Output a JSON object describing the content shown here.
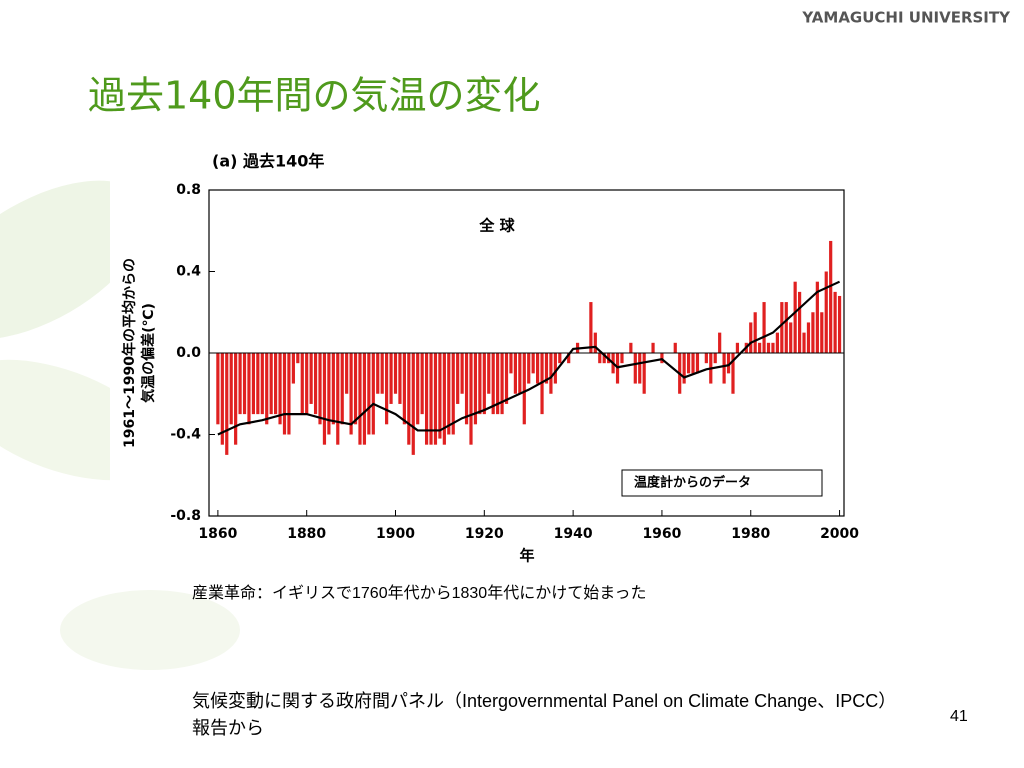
{
  "slide": {
    "logo": "YAMAGUCHI UNIVERSITY",
    "title": "過去140年間の気温の変化",
    "caption": "産業革命：イギリスで1760年代から1830年代にかけて始まった",
    "source": "気候変動に関する政府間パネル（Intergovernmental Panel on Climate Change、IPCC）報告から",
    "page_number": "41"
  },
  "chart_data": {
    "type": "bar",
    "title": "(a) 過去140年",
    "annotation": "全 球",
    "x_label": "年",
    "y_label": [
      "1961～1990年の平均からの",
      "気温の偏差(℃)"
    ],
    "xlim": [
      1858,
      2001
    ],
    "xticks": [
      1860,
      1880,
      1900,
      1920,
      1940,
      1960,
      1980,
      2000
    ],
    "ylim": [
      -0.8,
      0.8
    ],
    "yticks": [
      -0.8,
      -0.4,
      {
        "value": 0,
        "label": "0.0"
      },
      0.4,
      0.8
    ],
    "legend": "lower right",
    "series": [
      {
        "name": "温度計からのデータ",
        "type": "bar",
        "color": "#e02020",
        "x": [
          1860,
          1861,
          1862,
          1863,
          1864,
          1865,
          1866,
          1867,
          1868,
          1869,
          1870,
          1871,
          1872,
          1873,
          1874,
          1875,
          1876,
          1877,
          1878,
          1879,
          1880,
          1881,
          1882,
          1883,
          1884,
          1885,
          1886,
          1887,
          1888,
          1889,
          1890,
          1891,
          1892,
          1893,
          1894,
          1895,
          1896,
          1897,
          1898,
          1899,
          1900,
          1901,
          1902,
          1903,
          1904,
          1905,
          1906,
          1907,
          1908,
          1909,
          1910,
          1911,
          1912,
          1913,
          1914,
          1915,
          1916,
          1917,
          1918,
          1919,
          1920,
          1921,
          1922,
          1923,
          1924,
          1925,
          1926,
          1927,
          1928,
          1929,
          1930,
          1931,
          1932,
          1933,
          1934,
          1935,
          1936,
          1937,
          1938,
          1939,
          1940,
          1941,
          1942,
          1943,
          1944,
          1945,
          1946,
          1947,
          1948,
          1949,
          1950,
          1951,
          1952,
          1953,
          1954,
          1955,
          1956,
          1957,
          1958,
          1959,
          1960,
          1961,
          1962,
          1963,
          1964,
          1965,
          1966,
          1967,
          1968,
          1969,
          1970,
          1971,
          1972,
          1973,
          1974,
          1975,
          1976,
          1977,
          1978,
          1979,
          1980,
          1981,
          1982,
          1983,
          1984,
          1985,
          1986,
          1987,
          1988,
          1989,
          1990,
          1991,
          1992,
          1993,
          1994,
          1995,
          1996,
          1997,
          1998,
          1999,
          2000
        ],
        "values": [
          -0.35,
          -0.45,
          -0.5,
          -0.35,
          -0.45,
          -0.3,
          -0.3,
          -0.35,
          -0.3,
          -0.3,
          -0.3,
          -0.35,
          -0.3,
          -0.3,
          -0.35,
          -0.4,
          -0.4,
          -0.15,
          -0.05,
          -0.3,
          -0.3,
          -0.25,
          -0.3,
          -0.35,
          -0.45,
          -0.4,
          -0.35,
          -0.45,
          -0.35,
          -0.2,
          -0.4,
          -0.35,
          -0.45,
          -0.45,
          -0.4,
          -0.4,
          -0.2,
          -0.2,
          -0.35,
          -0.25,
          -0.2,
          -0.25,
          -0.35,
          -0.45,
          -0.5,
          -0.35,
          -0.3,
          -0.45,
          -0.45,
          -0.45,
          -0.42,
          -0.45,
          -0.4,
          -0.4,
          -0.25,
          -0.2,
          -0.35,
          -0.45,
          -0.35,
          -0.3,
          -0.3,
          -0.2,
          -0.3,
          -0.3,
          -0.3,
          -0.25,
          -0.1,
          -0.2,
          -0.2,
          -0.35,
          -0.15,
          -0.1,
          -0.15,
          -0.3,
          -0.15,
          -0.2,
          -0.15,
          -0.05,
          0.0,
          -0.05,
          0.0,
          0.05,
          0.0,
          0.0,
          0.25,
          0.1,
          -0.05,
          -0.05,
          -0.05,
          -0.1,
          -0.15,
          -0.05,
          0.0,
          0.05,
          -0.15,
          -0.15,
          -0.2,
          0.0,
          0.05,
          0.0,
          -0.05,
          0.0,
          0.0,
          0.05,
          -0.2,
          -0.15,
          -0.1,
          -0.1,
          -0.1,
          0.0,
          -0.05,
          -0.15,
          -0.05,
          0.1,
          -0.15,
          -0.1,
          -0.2,
          0.05,
          0.0,
          0.05,
          0.15,
          0.2,
          0.05,
          0.25,
          0.05,
          0.05,
          0.1,
          0.25,
          0.25,
          0.15,
          0.35,
          0.3,
          0.1,
          0.15,
          0.2,
          0.35,
          0.2,
          0.4,
          0.55,
          0.3,
          0.28
        ]
      },
      {
        "type": "line",
        "color": "#000000",
        "x": [
          1860,
          1865,
          1870,
          1875,
          1880,
          1885,
          1890,
          1895,
          1900,
          1905,
          1910,
          1915,
          1920,
          1925,
          1930,
          1935,
          1940,
          1945,
          1950,
          1955,
          1960,
          1965,
          1970,
          1975,
          1980,
          1985,
          1990,
          1995,
          2000
        ],
        "values": [
          -0.4,
          -0.35,
          -0.33,
          -0.3,
          -0.3,
          -0.33,
          -0.35,
          -0.25,
          -0.3,
          -0.38,
          -0.38,
          -0.32,
          -0.28,
          -0.23,
          -0.18,
          -0.12,
          0.02,
          0.03,
          -0.07,
          -0.05,
          -0.03,
          -0.12,
          -0.08,
          -0.06,
          0.05,
          0.1,
          0.2,
          0.3,
          0.35
        ]
      }
    ]
  }
}
